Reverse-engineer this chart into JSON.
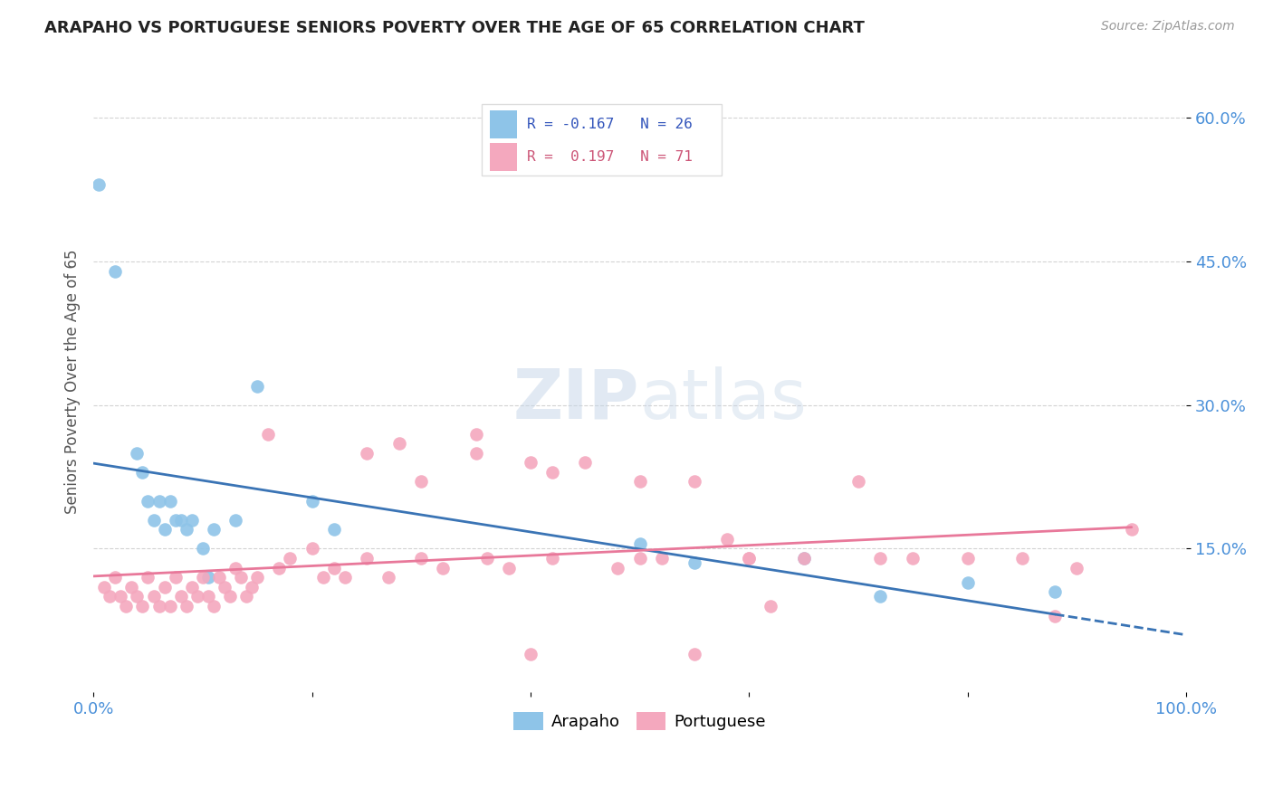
{
  "title": "ARAPAHO VS PORTUGUESE SENIORS POVERTY OVER THE AGE OF 65 CORRELATION CHART",
  "source": "Source: ZipAtlas.com",
  "ylabel": "Seniors Poverty Over the Age of 65",
  "xlim": [
    0,
    1.0
  ],
  "ylim": [
    0,
    0.65
  ],
  "ytick_positions": [
    0.15,
    0.3,
    0.45,
    0.6
  ],
  "ytick_labels": [
    "15.0%",
    "30.0%",
    "45.0%",
    "60.0%"
  ],
  "background_color": "#ffffff",
  "arapaho_color": "#8ec4e8",
  "portuguese_color": "#f4a8be",
  "arapaho_line_color": "#3a74b5",
  "portuguese_line_color": "#e8789a",
  "arapaho_R": -0.167,
  "arapaho_N": 26,
  "portuguese_R": 0.197,
  "portuguese_N": 71,
  "arapaho_x": [
    0.005,
    0.02,
    0.04,
    0.045,
    0.05,
    0.055,
    0.06,
    0.065,
    0.07,
    0.075,
    0.08,
    0.085,
    0.09,
    0.1,
    0.105,
    0.11,
    0.13,
    0.15,
    0.2,
    0.22,
    0.5,
    0.55,
    0.65,
    0.72,
    0.8,
    0.88
  ],
  "arapaho_y": [
    0.53,
    0.44,
    0.25,
    0.23,
    0.2,
    0.18,
    0.2,
    0.17,
    0.2,
    0.18,
    0.18,
    0.17,
    0.18,
    0.15,
    0.12,
    0.17,
    0.18,
    0.32,
    0.2,
    0.17,
    0.155,
    0.135,
    0.14,
    0.1,
    0.115,
    0.105
  ],
  "portuguese_x": [
    0.01,
    0.015,
    0.02,
    0.025,
    0.03,
    0.035,
    0.04,
    0.045,
    0.05,
    0.055,
    0.06,
    0.065,
    0.07,
    0.075,
    0.08,
    0.085,
    0.09,
    0.095,
    0.1,
    0.105,
    0.11,
    0.115,
    0.12,
    0.125,
    0.13,
    0.135,
    0.14,
    0.145,
    0.15,
    0.16,
    0.17,
    0.18,
    0.2,
    0.21,
    0.22,
    0.23,
    0.25,
    0.27,
    0.28,
    0.3,
    0.32,
    0.35,
    0.36,
    0.38,
    0.4,
    0.42,
    0.45,
    0.48,
    0.5,
    0.52,
    0.55,
    0.58,
    0.6,
    0.42,
    0.35,
    0.25,
    0.3,
    0.5,
    0.6,
    0.65,
    0.7,
    0.75,
    0.8,
    0.85,
    0.88,
    0.9,
    0.55,
    0.4,
    0.95,
    0.62,
    0.72
  ],
  "portuguese_y": [
    0.11,
    0.1,
    0.12,
    0.1,
    0.09,
    0.11,
    0.1,
    0.09,
    0.12,
    0.1,
    0.09,
    0.11,
    0.09,
    0.12,
    0.1,
    0.09,
    0.11,
    0.1,
    0.12,
    0.1,
    0.09,
    0.12,
    0.11,
    0.1,
    0.13,
    0.12,
    0.1,
    0.11,
    0.12,
    0.27,
    0.13,
    0.14,
    0.15,
    0.12,
    0.13,
    0.12,
    0.14,
    0.12,
    0.26,
    0.22,
    0.13,
    0.27,
    0.14,
    0.13,
    0.24,
    0.14,
    0.24,
    0.13,
    0.14,
    0.14,
    0.22,
    0.16,
    0.14,
    0.23,
    0.25,
    0.25,
    0.14,
    0.22,
    0.14,
    0.14,
    0.22,
    0.14,
    0.14,
    0.14,
    0.08,
    0.13,
    0.04,
    0.04,
    0.17,
    0.09,
    0.14
  ]
}
